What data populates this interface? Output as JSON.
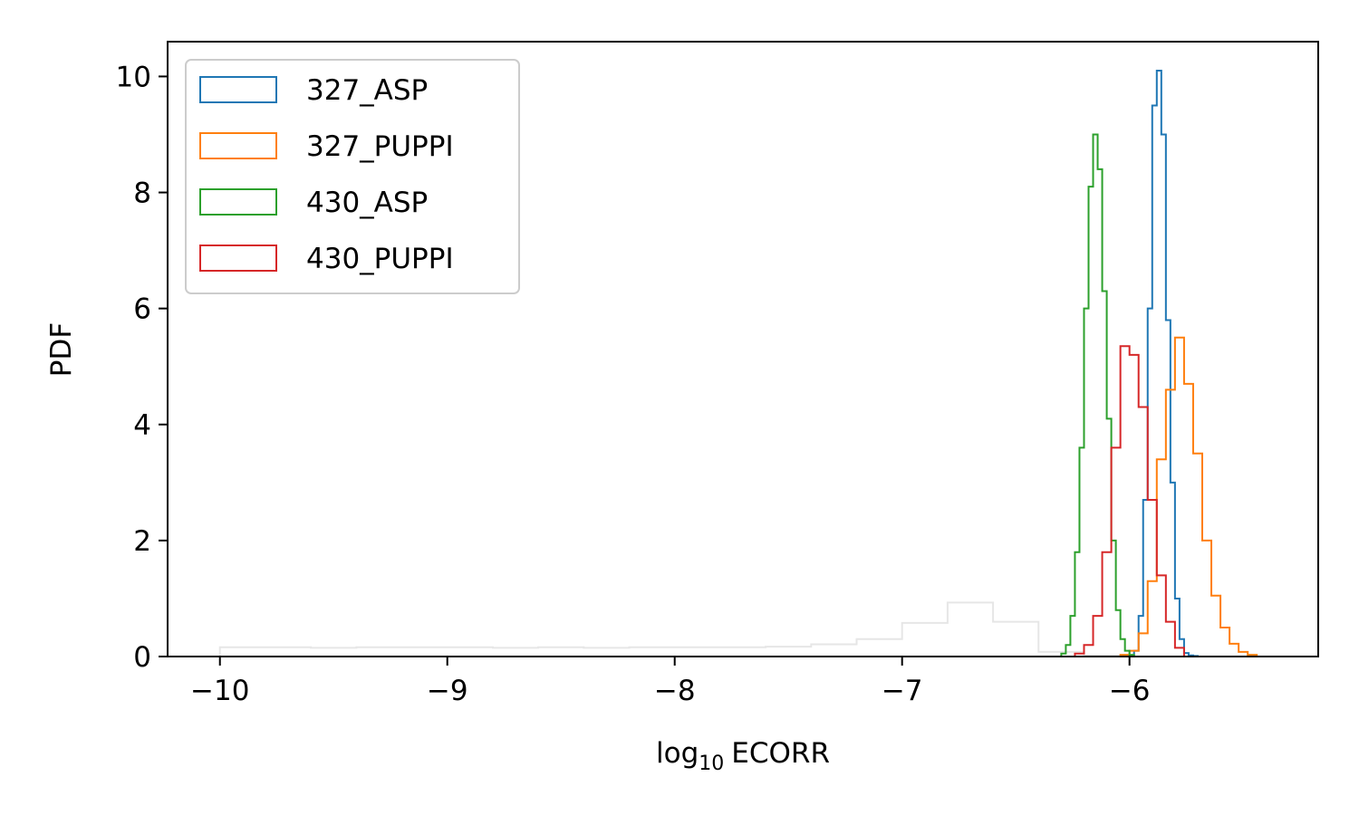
{
  "chart_data": {
    "type": "histogram-step",
    "title": "",
    "xlabel": "log10 ECORR",
    "xlabel_base": "log",
    "xlabel_sub": "10",
    "xlabel_rest": "ECORR",
    "ylabel": "PDF",
    "xlim": [
      -10.23,
      -5.17
    ],
    "ylim": [
      0,
      10.6
    ],
    "xticks": [
      -10,
      -9,
      -8,
      -7,
      -6
    ],
    "xtick_labels": [
      "−10",
      "−9",
      "−8",
      "−7",
      "−6"
    ],
    "yticks": [
      0,
      2,
      4,
      6,
      8,
      10
    ],
    "ytick_labels": [
      "0",
      "2",
      "4",
      "6",
      "8",
      "10"
    ],
    "grid": false,
    "legend_position": "top-left",
    "background_series": {
      "color": "#e6e6e6",
      "edges": [
        -10.0,
        -9.8,
        -9.6,
        -9.4,
        -9.2,
        -9.0,
        -8.8,
        -8.6,
        -8.4,
        -8.2,
        -8.0,
        -7.8,
        -7.6,
        -7.4,
        -7.2,
        -7.0,
        -6.8,
        -6.6,
        -6.4,
        -6.2,
        -6.0
      ],
      "values": [
        0.16,
        0.16,
        0.15,
        0.16,
        0.16,
        0.16,
        0.15,
        0.16,
        0.15,
        0.16,
        0.16,
        0.16,
        0.17,
        0.21,
        0.3,
        0.58,
        0.93,
        0.6,
        0.08,
        0.02
      ]
    },
    "series": [
      {
        "name": "327_ASP",
        "color": "#1f77b4",
        "edges": [
          -6.0,
          -5.98,
          -5.96,
          -5.94,
          -5.92,
          -5.9,
          -5.88,
          -5.86,
          -5.84,
          -5.82,
          -5.8,
          -5.78,
          -5.76,
          -5.74,
          -5.72,
          -5.7
        ],
        "values": [
          0.02,
          0.1,
          0.7,
          2.7,
          6.0,
          9.5,
          10.1,
          9.0,
          5.8,
          3.0,
          1.0,
          0.3,
          0.06,
          0.02,
          0.01
        ]
      },
      {
        "name": "327_PUPPI",
        "color": "#ff7f0e",
        "edges": [
          -6.04,
          -6.0,
          -5.96,
          -5.92,
          -5.88,
          -5.84,
          -5.8,
          -5.76,
          -5.72,
          -5.68,
          -5.64,
          -5.6,
          -5.56,
          -5.52,
          -5.48,
          -5.44
        ],
        "values": [
          0.03,
          0.1,
          0.4,
          1.3,
          3.4,
          4.6,
          5.5,
          4.7,
          3.5,
          2.0,
          1.05,
          0.5,
          0.22,
          0.08,
          0.03
        ]
      },
      {
        "name": "430_ASP",
        "color": "#2ca02c",
        "edges": [
          -6.3,
          -6.28,
          -6.26,
          -6.24,
          -6.22,
          -6.2,
          -6.18,
          -6.16,
          -6.14,
          -6.12,
          -6.1,
          -6.08,
          -6.06,
          -6.04,
          -6.02,
          -6.0,
          -5.98
        ],
        "values": [
          0.05,
          0.2,
          0.7,
          1.8,
          3.6,
          6.0,
          8.1,
          9.0,
          8.4,
          6.3,
          4.1,
          2.0,
          0.8,
          0.3,
          0.1,
          0.03
        ]
      },
      {
        "name": "430_PUPPI",
        "color": "#d62728",
        "edges": [
          -6.24,
          -6.2,
          -6.16,
          -6.12,
          -6.08,
          -6.04,
          -6.0,
          -5.96,
          -5.92,
          -5.88,
          -5.84,
          -5.8,
          -5.76
        ],
        "values": [
          0.05,
          0.2,
          0.7,
          1.8,
          3.6,
          5.35,
          5.2,
          4.3,
          2.7,
          1.4,
          0.6,
          0.15
        ]
      }
    ]
  }
}
